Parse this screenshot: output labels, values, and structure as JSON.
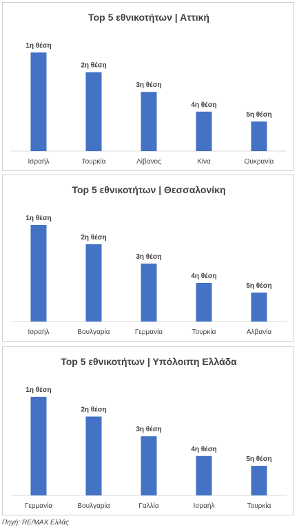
{
  "chart_data": [
    {
      "type": "bar",
      "title": "Top 5 εθνικοτήτων | Αττική",
      "categories": [
        "Ισραήλ",
        "Τουρκία",
        "Λίβανος",
        "Κίνα",
        "Ουκρανία"
      ],
      "values": [
        5,
        4,
        3,
        2,
        1.5
      ],
      "data_labels": [
        "1η θέση",
        "2η θέση",
        "3η θέση",
        "4η θέση",
        "5η θέση"
      ],
      "ylim": [
        0,
        5
      ],
      "grid": false,
      "legend": "none",
      "bar_color": "#4472c4"
    },
    {
      "type": "bar",
      "title": "Top 5 εθνικοτήτων | Θεσσαλονίκη",
      "categories": [
        "Ισραήλ",
        "Βουλγαρία",
        "Γερμανία",
        "Τουρκία",
        "Αλβανία"
      ],
      "values": [
        5,
        4,
        3,
        2,
        1.5
      ],
      "data_labels": [
        "1η θέση",
        "2η θέση",
        "3η θέση",
        "4η θέση",
        "5η θέση"
      ],
      "ylim": [
        0,
        5
      ],
      "grid": false,
      "legend": "none",
      "bar_color": "#4472c4"
    },
    {
      "type": "bar",
      "title": "Top 5 εθνικοτήτων | Υπόλοιπη Ελλάδα",
      "categories": [
        "Γερμανία",
        "Βουλγαρία",
        "Γαλλία",
        "Ισραήλ",
        "Τουρκία"
      ],
      "values": [
        5,
        4,
        3,
        2,
        1.5
      ],
      "data_labels": [
        "1η θέση",
        "2η θέση",
        "3η θέση",
        "4η θέση",
        "5η θέση"
      ],
      "ylim": [
        0,
        5
      ],
      "grid": false,
      "legend": "none",
      "bar_color": "#4472c4"
    }
  ],
  "source": "Πηγή: RE/MAX Ελλάς"
}
